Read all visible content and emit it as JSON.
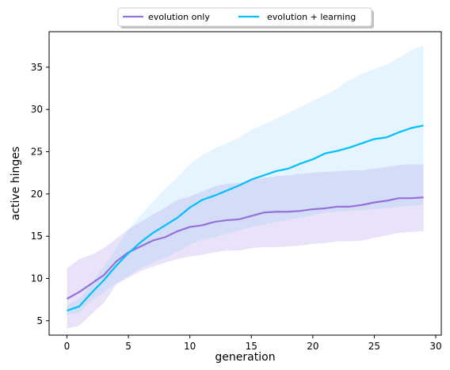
{
  "chart_data": {
    "type": "line",
    "xlabel": "generation",
    "ylabel": "active hinges",
    "xlim": [
      -1.45,
      30.45
    ],
    "ylim": [
      3.3,
      39.2
    ],
    "xticks": [
      0,
      5,
      10,
      15,
      20,
      25,
      30
    ],
    "yticks": [
      5,
      10,
      15,
      20,
      25,
      30,
      35
    ],
    "grid": false,
    "legend_position": "top-center",
    "x": [
      0,
      1,
      2,
      3,
      4,
      5,
      6,
      7,
      8,
      9,
      10,
      11,
      12,
      13,
      14,
      15,
      16,
      17,
      18,
      19,
      20,
      21,
      22,
      23,
      24,
      25,
      26,
      27,
      28,
      29
    ],
    "series": [
      {
        "name": "evolution only",
        "color": "#9370DB",
        "band_color": "#9370DB",
        "mean": [
          7.6,
          8.4,
          9.4,
          10.4,
          12.0,
          13.1,
          13.8,
          14.5,
          14.9,
          15.6,
          16.1,
          16.3,
          16.7,
          16.9,
          17.0,
          17.4,
          17.8,
          17.9,
          17.9,
          18.0,
          18.2,
          18.3,
          18.5,
          18.5,
          18.7,
          19.0,
          19.2,
          19.5,
          19.5,
          19.6
        ],
        "lower": [
          4.1,
          4.4,
          5.8,
          7.1,
          9.3,
          10.1,
          10.9,
          11.4,
          11.9,
          12.3,
          12.6,
          12.8,
          13.1,
          13.3,
          13.3,
          13.6,
          13.7,
          13.7,
          13.8,
          13.9,
          14.1,
          14.2,
          14.4,
          14.4,
          14.5,
          14.8,
          15.1,
          15.4,
          15.5,
          15.6
        ],
        "upper": [
          11.2,
          12.3,
          12.8,
          13.6,
          14.7,
          15.8,
          16.7,
          17.6,
          18.4,
          19.3,
          19.7,
          20.3,
          20.9,
          21.2,
          21.3,
          21.6,
          21.9,
          22.1,
          22.2,
          22.4,
          22.5,
          22.6,
          22.7,
          22.8,
          22.8,
          23.0,
          23.2,
          23.4,
          23.5,
          23.5
        ]
      },
      {
        "name": "evolution + learning",
        "color": "#00BFFF",
        "band_color": "#87CEFA",
        "mean": [
          6.2,
          6.7,
          8.3,
          9.8,
          11.5,
          13.0,
          14.3,
          15.4,
          16.3,
          17.2,
          18.4,
          19.3,
          19.8,
          20.4,
          21.0,
          21.7,
          22.2,
          22.7,
          23.0,
          23.6,
          24.1,
          24.8,
          25.1,
          25.5,
          26.0,
          26.5,
          26.7,
          27.3,
          27.8,
          28.1
        ],
        "lower": [
          5.7,
          6.0,
          7.4,
          8.3,
          9.5,
          10.3,
          11.3,
          11.9,
          12.5,
          13.2,
          14.0,
          14.6,
          14.9,
          15.3,
          15.7,
          16.1,
          16.4,
          16.7,
          16.9,
          17.2,
          17.5,
          17.8,
          17.9,
          18.0,
          18.1,
          18.2,
          18.3,
          18.5,
          18.6,
          18.7
        ],
        "upper": [
          6.8,
          7.6,
          9.4,
          11.4,
          13.6,
          15.8,
          17.5,
          19.1,
          20.6,
          22.0,
          23.5,
          24.6,
          25.4,
          26.0,
          26.7,
          27.6,
          28.2,
          28.9,
          29.6,
          30.3,
          31.0,
          31.7,
          32.5,
          33.5,
          34.2,
          34.8,
          35.3,
          36.1,
          37.0,
          37.6
        ]
      }
    ]
  }
}
